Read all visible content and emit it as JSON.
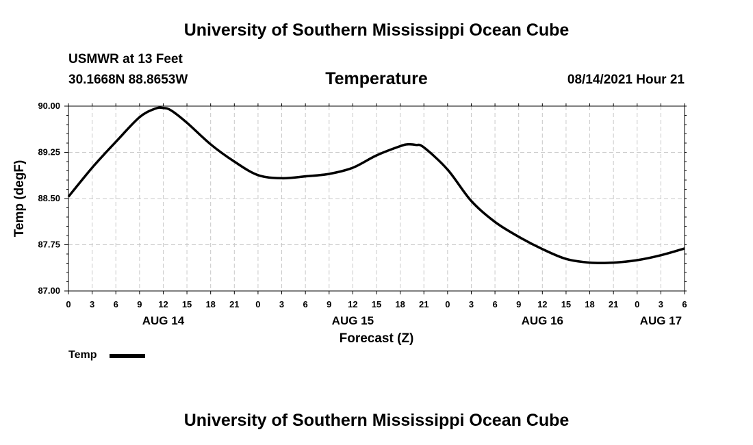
{
  "header": {
    "top_title": "University of Southern Mississippi Ocean Cube",
    "station": "USMWR at 13 Feet",
    "coords": "30.1668N  88.8653W",
    "variable": "Temperature",
    "datetime": "08/14/2021 Hour 21"
  },
  "footer": {
    "bottom_title": "University of Southern Mississippi Ocean Cube"
  },
  "legend": {
    "label": "Temp",
    "color": "#000000"
  },
  "chart_data": {
    "type": "line",
    "title": "Temperature",
    "xlabel": "Forecast (Z)",
    "ylabel": "Temp (degF)",
    "xlim": [
      0,
      78
    ],
    "ylim": [
      87.0,
      90.0
    ],
    "grid": true,
    "legend_position": "bottom-left",
    "y_ticks": [
      87.0,
      87.75,
      88.5,
      89.25,
      90.0
    ],
    "y_tick_labels": [
      "87.00",
      "87.75",
      "88.50",
      "89.25",
      "90.00"
    ],
    "x_ticks": [
      0,
      3,
      6,
      9,
      12,
      15,
      18,
      21,
      24,
      27,
      30,
      33,
      36,
      39,
      42,
      45,
      48,
      51,
      54,
      57,
      60,
      63,
      66,
      69,
      72,
      75,
      78
    ],
    "x_tick_labels": [
      "0",
      "3",
      "6",
      "9",
      "12",
      "15",
      "18",
      "21",
      "0",
      "3",
      "6",
      "9",
      "12",
      "15",
      "18",
      "21",
      "0",
      "3",
      "6",
      "9",
      "12",
      "15",
      "18",
      "21",
      "0",
      "3",
      "6"
    ],
    "day_labels": [
      {
        "x": 12,
        "label": "AUG 14"
      },
      {
        "x": 36,
        "label": "AUG 15"
      },
      {
        "x": 60,
        "label": "AUG 16"
      },
      {
        "x": 75,
        "label": "AUG 17"
      }
    ],
    "series": [
      {
        "name": "Temp",
        "color": "#000000",
        "x": [
          0,
          3,
          6,
          9,
          11,
          12,
          13,
          15,
          18,
          21,
          24,
          27,
          30,
          33,
          36,
          39,
          42,
          43,
          44,
          45,
          48,
          51,
          54,
          57,
          60,
          63,
          66,
          69,
          72,
          75,
          78
        ],
        "y": [
          88.53,
          89.0,
          89.42,
          89.82,
          89.96,
          89.97,
          89.93,
          89.73,
          89.38,
          89.1,
          88.88,
          88.83,
          88.86,
          88.9,
          89.0,
          89.2,
          89.35,
          89.38,
          89.37,
          89.33,
          88.97,
          88.46,
          88.12,
          87.88,
          87.68,
          87.52,
          87.46,
          87.46,
          87.5,
          87.58,
          87.69
        ]
      }
    ]
  }
}
